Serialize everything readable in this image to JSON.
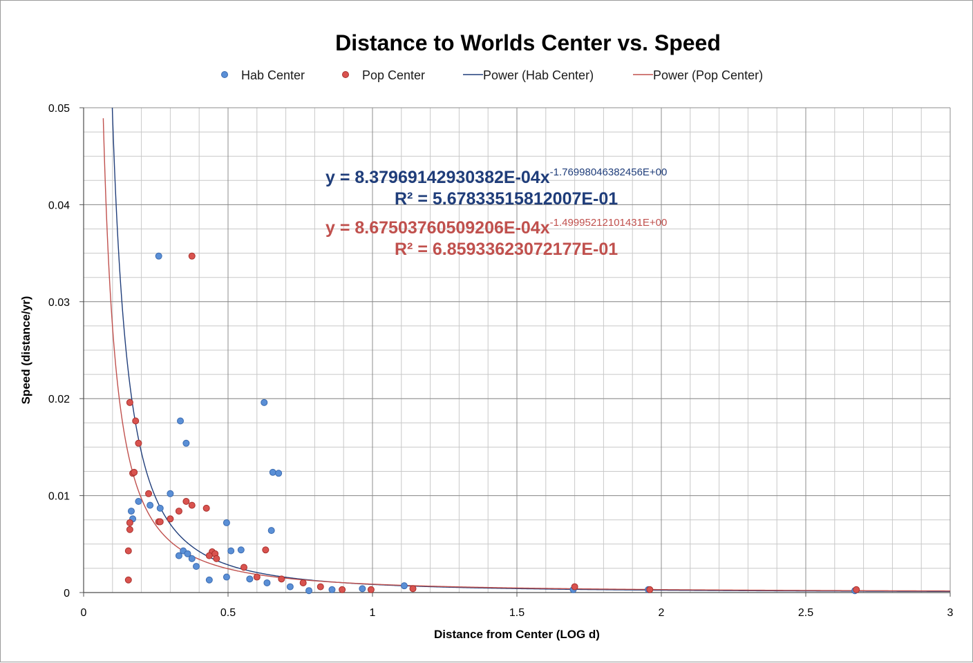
{
  "chart_data": {
    "type": "scatter",
    "title": "Distance to Worlds Center vs. Speed",
    "xlabel": "Distance from Center (LOG d)",
    "ylabel": "Speed (distance/yr)",
    "xlim": [
      0,
      3
    ],
    "ylim": [
      0,
      0.05
    ],
    "x_ticks": [
      "0",
      "0.5",
      "1",
      "1.5",
      "2",
      "2.5",
      "3"
    ],
    "y_ticks": [
      "0",
      "0.01",
      "0.02",
      "0.03",
      "0.04",
      "0.05"
    ],
    "x_minor_step": 0.1,
    "y_minor_step": 0.0025,
    "legend_position": "top",
    "legend": [
      {
        "name": "Hab Center",
        "kind": "marker"
      },
      {
        "name": "Pop Center",
        "kind": "marker"
      },
      {
        "name": "Power (Hab Center)",
        "kind": "line"
      },
      {
        "name": "Power (Pop Center)",
        "kind": "line"
      }
    ],
    "series": [
      {
        "name": "Hab Center",
        "color": "#4f81bd",
        "points": [
          [
            0.26,
            0.0347
          ],
          [
            0.335,
            0.0177
          ],
          [
            0.355,
            0.0154
          ],
          [
            0.625,
            0.0196
          ],
          [
            0.655,
            0.0124
          ],
          [
            0.675,
            0.0123
          ],
          [
            0.65,
            0.0064
          ],
          [
            0.19,
            0.0094
          ],
          [
            0.165,
            0.0084
          ],
          [
            0.17,
            0.0076
          ],
          [
            0.23,
            0.009
          ],
          [
            0.265,
            0.0087
          ],
          [
            0.3,
            0.0102
          ],
          [
            0.495,
            0.0072
          ],
          [
            0.33,
            0.0038
          ],
          [
            0.345,
            0.0043
          ],
          [
            0.36,
            0.004
          ],
          [
            0.375,
            0.0035
          ],
          [
            0.39,
            0.0027
          ],
          [
            0.435,
            0.0013
          ],
          [
            0.495,
            0.0016
          ],
          [
            0.51,
            0.0043
          ],
          [
            0.545,
            0.0044
          ],
          [
            0.575,
            0.0014
          ],
          [
            0.635,
            0.001
          ],
          [
            0.715,
            0.0006
          ],
          [
            0.78,
            0.0002
          ],
          [
            0.86,
            0.0003
          ],
          [
            0.965,
            0.0004
          ],
          [
            1.11,
            0.0007
          ],
          [
            1.695,
            0.0003
          ],
          [
            1.955,
            0.0003
          ],
          [
            2.67,
            0.0002
          ]
        ]
      },
      {
        "name": "Pop Center",
        "color": "#c0504d",
        "points": [
          [
            0.375,
            0.0347
          ],
          [
            0.16,
            0.0196
          ],
          [
            0.18,
            0.0177
          ],
          [
            0.19,
            0.0154
          ],
          [
            0.17,
            0.0123
          ],
          [
            0.175,
            0.0124
          ],
          [
            0.225,
            0.0102
          ],
          [
            0.355,
            0.0094
          ],
          [
            0.375,
            0.009
          ],
          [
            0.425,
            0.0087
          ],
          [
            0.33,
            0.0084
          ],
          [
            0.3,
            0.0076
          ],
          [
            0.26,
            0.0073
          ],
          [
            0.265,
            0.0073
          ],
          [
            0.16,
            0.0072
          ],
          [
            0.16,
            0.0065
          ],
          [
            0.155,
            0.0043
          ],
          [
            0.63,
            0.0044
          ],
          [
            0.445,
            0.0042
          ],
          [
            0.455,
            0.004
          ],
          [
            0.435,
            0.0038
          ],
          [
            0.46,
            0.0035
          ],
          [
            0.555,
            0.0026
          ],
          [
            0.6,
            0.0016
          ],
          [
            0.685,
            0.0014
          ],
          [
            0.155,
            0.0013
          ],
          [
            0.76,
            0.001
          ],
          [
            0.82,
            0.0006
          ],
          [
            0.895,
            0.0003
          ],
          [
            0.995,
            0.0003
          ],
          [
            1.14,
            0.0004
          ],
          [
            1.7,
            0.0006
          ],
          [
            1.96,
            0.0003
          ],
          [
            2.675,
            0.0003
          ]
        ]
      }
    ],
    "trendlines": [
      {
        "name": "Power (Hab Center)",
        "type": "power",
        "a": 0.00083797,
        "b": -1.76998,
        "color": "#1f3d7a",
        "x_start": 0.098
      },
      {
        "name": "Power (Pop Center)",
        "type": "power",
        "a": 0.0008675,
        "b": -1.49995,
        "color": "#c0504d",
        "x_start": 0.068
      }
    ],
    "annotations": {
      "hab_equation": {
        "prefix": "y = 8.37969142930382E-04x",
        "exponent": "-1.76998046382456E+00",
        "r2": "R² = 5.67833515812007E-01",
        "color": "#1f3d7a"
      },
      "pop_equation": {
        "prefix": "y = 8.67503760509206E-04x",
        "exponent": "-1.49995212101431E+00",
        "r2": "R² = 6.85933623072177E-01",
        "color": "#c0504d"
      }
    }
  }
}
